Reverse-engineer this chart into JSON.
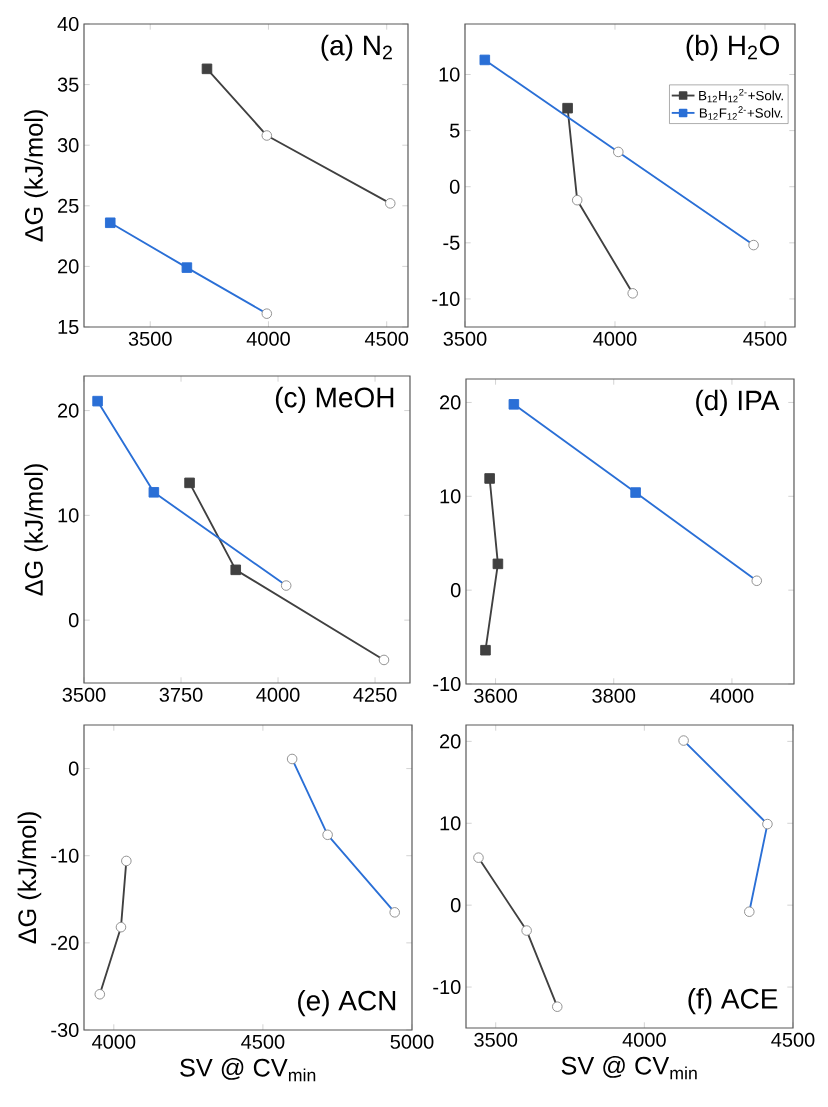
{
  "chart_data": [
    {
      "type": "line",
      "title": "(a) N$_{2}$",
      "ylabel": "ΔG (kJ/mol)",
      "xlim": [
        3220,
        4590
      ],
      "ylim": [
        15,
        40
      ],
      "xticks": [
        3500,
        4000,
        4500
      ],
      "yticks": [
        15,
        20,
        25,
        30,
        35,
        40
      ],
      "series": [
        {
          "color": "#404040",
          "x": [
            3740,
            3993,
            4515
          ],
          "values": [
            36.3,
            30.8,
            25.2
          ]
        },
        {
          "color": "#2a6fd6",
          "x": [
            3331,
            3655,
            3993
          ],
          "values": [
            23.6,
            19.9,
            16.1
          ]
        },
        {
          "type": "scatter",
          "marker": "square",
          "color": "#404040",
          "x": [
            3740
          ],
          "values": [
            36.3
          ]
        },
        {
          "type": "scatter",
          "marker": "circle",
          "color": "#ffffff",
          "x": [
            3993,
            4515
          ],
          "values": [
            30.8,
            25.2
          ]
        },
        {
          "type": "scatter",
          "marker": "square",
          "color": "#2a6fd6",
          "x": [
            3331,
            3655
          ],
          "values": [
            23.6,
            19.9
          ]
        },
        {
          "type": "scatter",
          "marker": "circle",
          "color": "#ffffff",
          "x": [
            3993
          ],
          "values": [
            16.1
          ]
        }
      ]
    },
    {
      "type": "line",
      "title": "(b) H$_{2}$O",
      "legend": "top right",
      "xlim": [
        3500,
        4600
      ],
      "ylim": [
        -12.5,
        14.5
      ],
      "xticks": [
        3500,
        4000,
        4500
      ],
      "yticks": [
        -10,
        -5,
        0,
        5,
        10
      ],
      "series": [
        {
          "name": "B$_{12}$H$_{12}$$^{2-}$+Solv.",
          "color": "#404040",
          "x": [
            3842,
            3874,
            4059
          ],
          "values": [
            7.0,
            -1.2,
            -9.5
          ]
        },
        {
          "name": "B$_{12}$F$_{12}$$^{2-}$+Solv.",
          "color": "#2a6fd6",
          "x": [
            3566,
            4011,
            4462
          ],
          "values": [
            11.3,
            3.1,
            -5.2
          ]
        },
        {
          "type": "scatter",
          "marker": "square",
          "color": "#404040",
          "x": [
            3842
          ],
          "values": [
            7.0
          ]
        },
        {
          "type": "scatter",
          "marker": "circle",
          "color": "#ffffff",
          "x": [
            3874,
            4059
          ],
          "values": [
            -1.2,
            -9.5
          ]
        },
        {
          "type": "scatter",
          "marker": "square",
          "color": "#2a6fd6",
          "x": [
            3566
          ],
          "values": [
            11.3
          ]
        },
        {
          "type": "scatter",
          "marker": "circle",
          "color": "#ffffff",
          "x": [
            4011,
            4462
          ],
          "values": [
            3.1,
            -5.2
          ]
        }
      ]
    },
    {
      "type": "line",
      "title": "(c) MeOH",
      "ylabel": "ΔG (kJ/mol)",
      "xlim": [
        3500,
        4340
      ],
      "ylim": [
        -6,
        23.3
      ],
      "xticks": [
        3500,
        3750,
        4000,
        4250
      ],
      "yticks": [
        0,
        10,
        20
      ],
      "series": [
        {
          "color": "#404040",
          "x": [
            3772,
            3891,
            4273
          ],
          "values": [
            13.1,
            4.8,
            -3.8
          ]
        },
        {
          "color": "#2a6fd6",
          "x": [
            3535,
            3680,
            4021
          ],
          "values": [
            20.9,
            12.2,
            3.3
          ]
        },
        {
          "type": "scatter",
          "marker": "square",
          "color": "#404040",
          "x": [
            3772,
            3891
          ],
          "values": [
            13.1,
            4.8
          ]
        },
        {
          "type": "scatter",
          "marker": "circle",
          "color": "#ffffff",
          "x": [
            4273
          ],
          "values": [
            -3.8
          ]
        },
        {
          "type": "scatter",
          "marker": "square",
          "color": "#2a6fd6",
          "x": [
            3535,
            3680
          ],
          "values": [
            20.9,
            12.2
          ]
        },
        {
          "type": "scatter",
          "marker": "circle",
          "color": "#ffffff",
          "x": [
            4021
          ],
          "values": [
            3.3
          ]
        }
      ]
    },
    {
      "type": "line",
      "title": "(d) IPA",
      "xlim": [
        3550,
        4105
      ],
      "ylim": [
        -10,
        22.5
      ],
      "xticks": [
        3600,
        3800,
        4000
      ],
      "yticks": [
        -10,
        0,
        10,
        20
      ],
      "series": [
        {
          "color": "#404040",
          "x": [
            3590,
            3604,
            3583
          ],
          "values": [
            11.9,
            2.8,
            -6.4
          ]
        },
        {
          "color": "#2a6fd6",
          "x": [
            3631,
            3837,
            4042
          ],
          "values": [
            19.8,
            10.4,
            1.0
          ]
        },
        {
          "type": "scatter",
          "marker": "square",
          "color": "#404040",
          "x": [
            3590,
            3604,
            3583
          ],
          "values": [
            11.9,
            2.8,
            -6.4
          ]
        },
        {
          "type": "scatter",
          "marker": "square",
          "color": "#2a6fd6",
          "x": [
            3631,
            3837
          ],
          "values": [
            19.8,
            10.4
          ]
        },
        {
          "type": "scatter",
          "marker": "circle",
          "color": "#ffffff",
          "x": [
            4042
          ],
          "values": [
            1.0
          ]
        }
      ]
    },
    {
      "type": "line",
      "title": "(e) ACN",
      "ylabel": "ΔG (kJ/mol)",
      "xlabel": "SV @ CV$_{min}$",
      "xlim": [
        3900,
        5000
      ],
      "ylim": [
        -30,
        5
      ],
      "xticks": [
        4000,
        4500,
        5000
      ],
      "yticks": [
        -30,
        -20,
        -10,
        0
      ],
      "series": [
        {
          "color": "#404040",
          "x": [
            3953,
            4024,
            4042
          ],
          "values": [
            -25.9,
            -18.2,
            -10.6
          ]
        },
        {
          "color": "#2a6fd6",
          "x": [
            4598,
            4717,
            4942
          ],
          "values": [
            1.1,
            -7.6,
            -16.5
          ]
        },
        {
          "type": "scatter",
          "marker": "circle",
          "color": "#ffffff",
          "x": [
            3953,
            4024,
            4042
          ],
          "values": [
            -25.9,
            -18.2,
            -10.6
          ]
        },
        {
          "type": "scatter",
          "marker": "circle",
          "color": "#ffffff",
          "x": [
            4598,
            4717,
            4942
          ],
          "values": [
            1.1,
            -7.6,
            -16.5
          ]
        }
      ]
    },
    {
      "type": "line",
      "title": "(f) ACE",
      "xlabel": "SV @ CV$_{min}$",
      "xlim": [
        3400,
        4500
      ],
      "ylim": [
        -15,
        22
      ],
      "xticks": [
        3500,
        4000,
        4500
      ],
      "yticks": [
        -10,
        0,
        10,
        20
      ],
      "series": [
        {
          "color": "#404040",
          "x": [
            3442,
            3604,
            3707
          ],
          "values": [
            5.8,
            -3.1,
            -12.4
          ]
        },
        {
          "color": "#2a6fd6",
          "x": [
            4132,
            4414,
            4353
          ],
          "values": [
            20.1,
            9.9,
            -0.8
          ]
        },
        {
          "type": "scatter",
          "marker": "circle",
          "color": "#ffffff",
          "x": [
            3442,
            3604,
            3707
          ],
          "values": [
            5.8,
            -3.1,
            -12.4
          ]
        },
        {
          "type": "scatter",
          "marker": "circle",
          "color": "#ffffff",
          "x": [
            4132,
            4414,
            4353
          ],
          "values": [
            20.1,
            9.9,
            -0.8
          ]
        }
      ]
    }
  ]
}
